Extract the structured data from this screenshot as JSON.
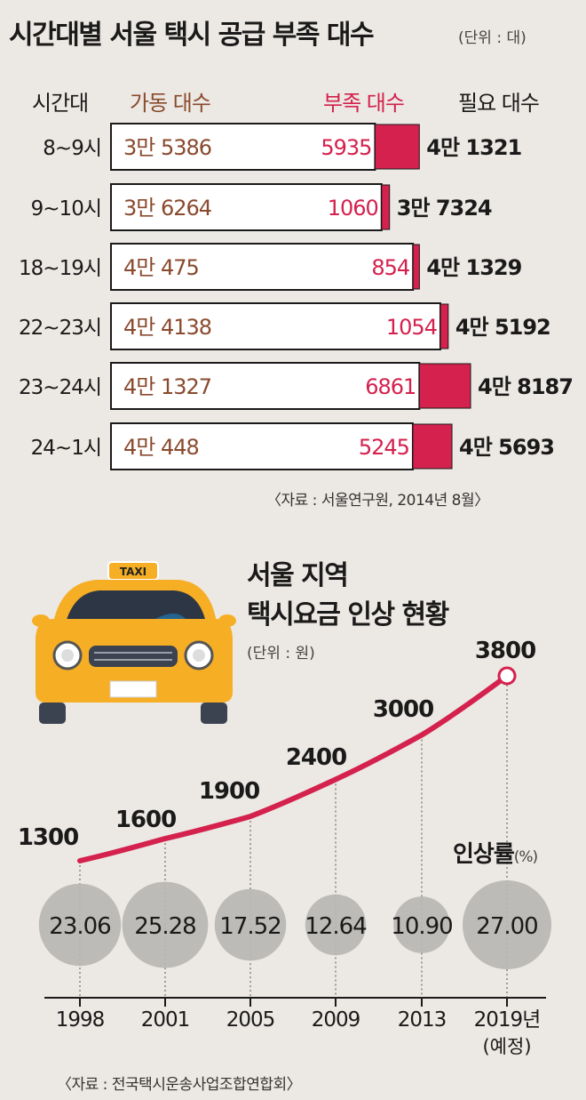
{
  "chart_data": [
    {
      "type": "bar",
      "title": "시간대별 서울 택시 공급 부족 대수",
      "unit": "(단위 : 대)",
      "headers": {
        "time": "시간대",
        "operating": "가동 대수",
        "shortage": "부족 대수",
        "required": "필요 대수"
      },
      "rows": [
        {
          "time": "8~9시",
          "operating": 35386,
          "operating_label": "3만 5386",
          "shortage": 5935,
          "shortage_label": "5935",
          "required": 41321,
          "required_label": "4만 1321"
        },
        {
          "time": "9~10시",
          "operating": 36264,
          "operating_label": "3만 6264",
          "shortage": 1060,
          "shortage_label": "1060",
          "required": 37324,
          "required_label": "3만 7324"
        },
        {
          "time": "18~19시",
          "operating": 40475,
          "operating_label": "4만 475",
          "shortage": 854,
          "shortage_label": "854",
          "required": 41329,
          "required_label": "4만 1329"
        },
        {
          "time": "22~23시",
          "operating": 44138,
          "operating_label": "4만 4138",
          "shortage": 1054,
          "shortage_label": "1054",
          "required": 45192,
          "required_label": "4만 5192"
        },
        {
          "time": "23~24시",
          "operating": 41327,
          "operating_label": "4만 1327",
          "shortage": 6861,
          "shortage_label": "6861",
          "required": 48187,
          "required_label": "4만 8187"
        },
        {
          "time": "24~1시",
          "operating": 40448,
          "operating_label": "4만 448",
          "shortage": 5245,
          "shortage_label": "5245",
          "required": 45693,
          "required_label": "4만 5693"
        }
      ],
      "source": "〈자료 : 서울연구원, 2014년 8월〉",
      "colors": {
        "operating_text": "#8a4a2e",
        "shortage": "#d4214d",
        "bar_fill": "#ffffff"
      }
    },
    {
      "type": "line",
      "title_lines": [
        "서울 지역",
        "택시요금 인상 현황"
      ],
      "unit": "(단위 : 원)",
      "x": [
        "1998",
        "2001",
        "2005",
        "2009",
        "2013",
        "2019년"
      ],
      "x_sub": [
        "",
        "",
        "",
        "",
        "",
        "(예정)"
      ],
      "fare": [
        1300,
        1600,
        1900,
        2400,
        3000,
        3800
      ],
      "fare_labels": [
        "1300",
        "1600",
        "1900",
        "2400",
        "3000",
        "3800"
      ],
      "rate_title": "인상률",
      "rate_unit": "(%)",
      "rate": [
        23.06,
        25.28,
        17.52,
        12.64,
        10.9,
        27.0
      ],
      "rate_labels": [
        "23.06",
        "25.28",
        "17.52",
        "12.64",
        "10.90",
        "27.00"
      ],
      "source": "〈자료 : 전국택시운송사업조합연합회〉",
      "colors": {
        "line": "#d4214d",
        "bubble": "#b9b6b3"
      }
    }
  ],
  "taxi": {
    "sign_text": "TAXI",
    "body_color": "#f6ae24"
  }
}
